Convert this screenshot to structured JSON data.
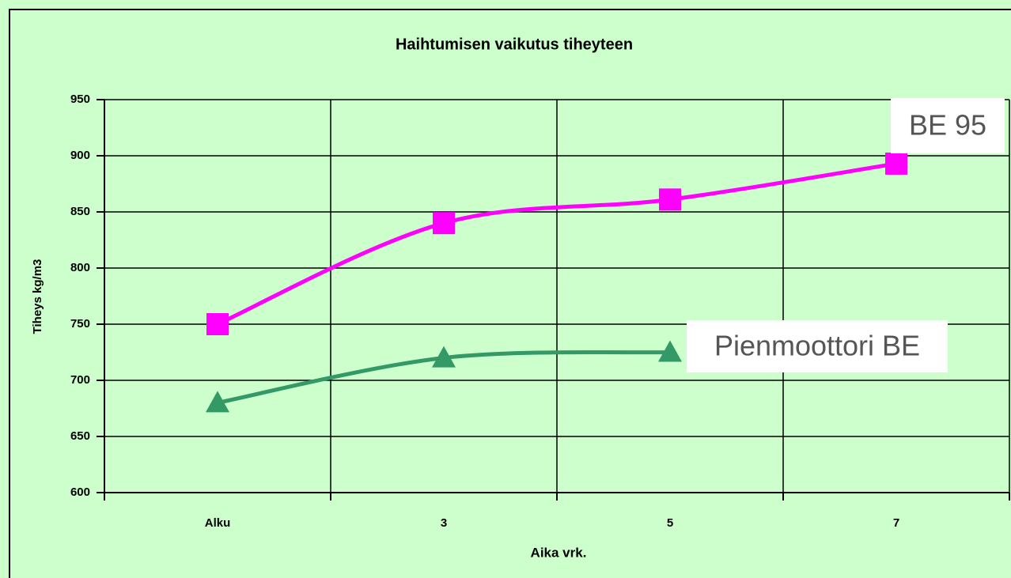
{
  "chart_data": {
    "type": "line",
    "title": "Haihtumisen vaikutus tiheyteen",
    "x_label": "Aika vrk.",
    "y_label": "Tiheys kg/m3",
    "categories": [
      "Alku",
      "3",
      "5",
      "7"
    ],
    "series": [
      {
        "name": "BE 95",
        "color": "#ff00ff",
        "marker": "square",
        "values": [
          750,
          840,
          861,
          893
        ]
      },
      {
        "name": "Pienmoottori BE",
        "color": "#339966",
        "marker": "triangle",
        "values": [
          680,
          720,
          725,
          null
        ]
      }
    ],
    "ylim": [
      600,
      950
    ],
    "yticks": [
      600,
      650,
      700,
      750,
      800,
      850,
      900,
      950
    ],
    "grid": true
  }
}
